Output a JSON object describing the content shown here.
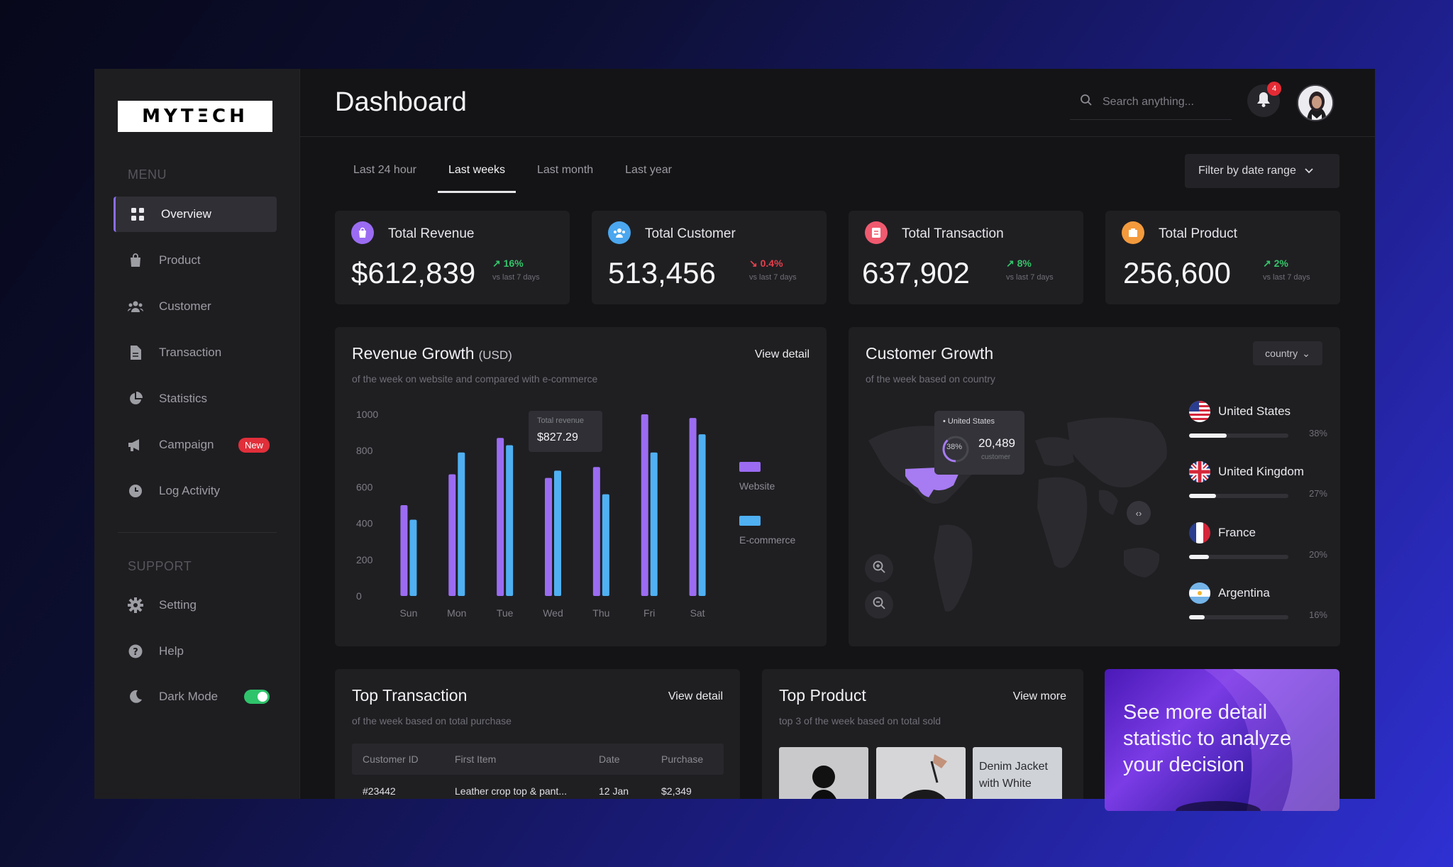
{
  "brand": {
    "logo_text": "MYTΞCH"
  },
  "sidebar": {
    "menu_label": "MENU",
    "support_label": "SUPPORT",
    "items": [
      {
        "label": "Overview",
        "icon": "grid-icon"
      },
      {
        "label": "Product",
        "icon": "bag-icon"
      },
      {
        "label": "Customer",
        "icon": "users-icon"
      },
      {
        "label": "Transaction",
        "icon": "document-icon"
      },
      {
        "label": "Statistics",
        "icon": "pie-chart-icon"
      },
      {
        "label": "Campaign",
        "icon": "megaphone-icon",
        "badge": "New"
      },
      {
        "label": "Log Activity",
        "icon": "clock-icon"
      }
    ],
    "support_items": [
      {
        "label": "Setting",
        "icon": "gear-icon"
      },
      {
        "label": "Help",
        "icon": "help-icon"
      },
      {
        "label": "Dark Mode",
        "icon": "moon-icon",
        "toggle": true
      }
    ]
  },
  "header": {
    "title": "Dashboard",
    "search_placeholder": "Search anything...",
    "notification_count": "4"
  },
  "range_tabs": [
    "Last 24 hour",
    "Last weeks",
    "Last month",
    "Last year"
  ],
  "active_tab": "Last weeks",
  "filter_label": "Filter by date range",
  "stats": [
    {
      "title": "Total Revenue",
      "value": "$612,839",
      "change": "16%",
      "direction": "up",
      "compare": "vs last 7 days",
      "color": "#9b6cf2"
    },
    {
      "title": "Total Customer",
      "value": "513,456",
      "change": "0.4%",
      "direction": "down",
      "compare": "vs last 7 days",
      "color": "#4ba7ef"
    },
    {
      "title": "Total Transaction",
      "value": "637,902",
      "change": "8%",
      "direction": "up",
      "compare": "vs last 7 days",
      "color": "#ef5a6f"
    },
    {
      "title": "Total Product",
      "value": "256,600",
      "change": "2%",
      "direction": "up",
      "compare": "vs last 7 days",
      "color": "#f39a3c"
    }
  ],
  "revenue": {
    "title": "Revenue Growth",
    "unit": "(USD)",
    "subtitle": "of the week on website and compared with e-commerce",
    "link": "View detail",
    "tooltip_label": "Total revenue",
    "tooltip_value": "$827.29"
  },
  "chart_data": {
    "type": "bar",
    "categories": [
      "Sun",
      "Mon",
      "Tue",
      "Wed",
      "Thu",
      "Fri",
      "Sat"
    ],
    "series": [
      {
        "name": "Website",
        "values": [
          500,
          670,
          870,
          650,
          710,
          1000,
          980
        ],
        "color": "#9b6cf2"
      },
      {
        "name": "E-commerce",
        "values": [
          420,
          790,
          830,
          690,
          560,
          790,
          890
        ],
        "color": "#4fb0f2"
      }
    ],
    "ylim": [
      0,
      1000
    ],
    "yticks": [
      0,
      200,
      400,
      600,
      800,
      1000
    ],
    "legend": "right"
  },
  "customer_growth": {
    "title": "Customer Growth",
    "subtitle": "of the week based on country",
    "select": "country",
    "tip_country": "United States",
    "tip_pct": "38%",
    "tip_value": "20,489",
    "tip_caption": "customer",
    "countries": [
      {
        "name": "United States",
        "pct": "38%",
        "value": 0.38
      },
      {
        "name": "United Kingdom",
        "pct": "27%",
        "value": 0.27
      },
      {
        "name": "France",
        "pct": "20%",
        "value": 0.2
      },
      {
        "name": "Argentina",
        "pct": "16%",
        "value": 0.16
      }
    ]
  },
  "top_transaction": {
    "title": "Top Transaction",
    "subtitle": "of the week based on total purchase",
    "link": "View detail",
    "columns": [
      "Customer ID",
      "First Item",
      "Date",
      "Purchase"
    ],
    "rows": [
      [
        "#23442",
        "Leather crop top & pant...",
        "12 Jan",
        "$2,349"
      ]
    ]
  },
  "top_product": {
    "title": "Top Product",
    "subtitle": "top 3 of the week based on total sold",
    "link": "View more",
    "third_label": "Denim Jacket with White"
  },
  "promo": {
    "text": "See more detail statistic to analyze your decision"
  }
}
